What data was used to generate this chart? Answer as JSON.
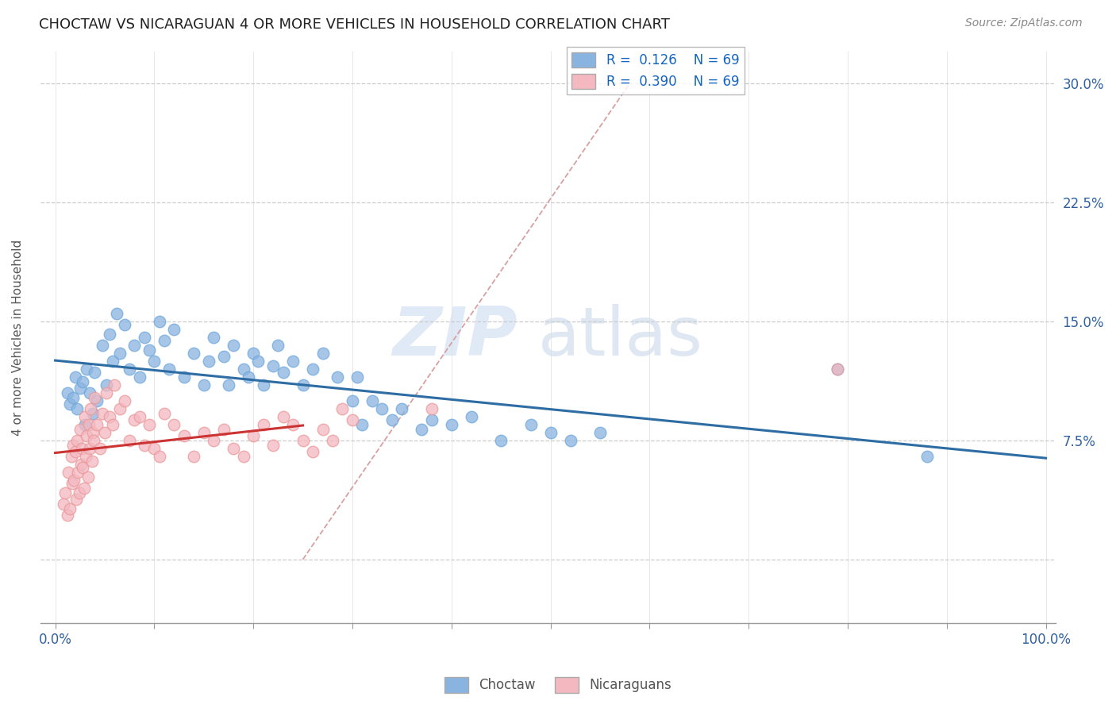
{
  "title": "CHOCTAW VS NICARAGUAN 4 OR MORE VEHICLES IN HOUSEHOLD CORRELATION CHART",
  "source": "Source: ZipAtlas.com",
  "ylabel": "4 or more Vehicles in Household",
  "choctaw_R": "0.126",
  "choctaw_N": "69",
  "nicaraguan_R": "0.390",
  "nicaraguan_N": "69",
  "choctaw_color": "#8ab4e0",
  "choctaw_edge": "#6fa8dc",
  "nicaraguan_color": "#f4b8c1",
  "nicaraguan_edge": "#ea9999",
  "choctaw_line_color": "#2e6da4",
  "nicaraguan_line_color": "#cc3333",
  "diagonal_color": "#d8a0a0",
  "watermark_zip": "ZIP",
  "watermark_atlas": "atlas",
  "choctaw_x": [
    1.2,
    1.5,
    1.8,
    2.0,
    2.2,
    2.5,
    2.8,
    3.0,
    3.2,
    3.5,
    3.8,
    4.0,
    4.2,
    4.8,
    5.2,
    5.5,
    5.8,
    6.2,
    6.5,
    7.0,
    7.5,
    8.0,
    8.5,
    9.0,
    9.5,
    10.0,
    10.5,
    11.0,
    11.5,
    12.0,
    13.0,
    14.0,
    15.0,
    15.5,
    16.0,
    17.0,
    17.5,
    18.0,
    19.0,
    19.5,
    20.0,
    20.5,
    21.0,
    22.0,
    22.5,
    23.0,
    24.0,
    25.0,
    26.0,
    27.0,
    28.5,
    30.0,
    30.5,
    31.0,
    32.0,
    33.0,
    34.0,
    35.0,
    37.0,
    38.0,
    40.0,
    42.0,
    45.0,
    48.0,
    50.0,
    52.0,
    55.0,
    79.0,
    88.0
  ],
  "choctaw_y": [
    10.5,
    9.8,
    10.2,
    11.5,
    9.5,
    10.8,
    11.2,
    8.5,
    12.0,
    10.5,
    9.2,
    11.8,
    10.0,
    13.5,
    11.0,
    14.2,
    12.5,
    15.5,
    13.0,
    14.8,
    12.0,
    13.5,
    11.5,
    14.0,
    13.2,
    12.5,
    15.0,
    13.8,
    12.0,
    14.5,
    11.5,
    13.0,
    11.0,
    12.5,
    14.0,
    12.8,
    11.0,
    13.5,
    12.0,
    11.5,
    13.0,
    12.5,
    11.0,
    12.2,
    13.5,
    11.8,
    12.5,
    11.0,
    12.0,
    13.0,
    11.5,
    10.0,
    11.5,
    8.5,
    10.0,
    9.5,
    8.8,
    9.5,
    8.2,
    8.8,
    8.5,
    9.0,
    7.5,
    8.5,
    8.0,
    7.5,
    8.0,
    12.0,
    6.5
  ],
  "nicaraguan_x": [
    0.8,
    1.0,
    1.2,
    1.3,
    1.5,
    1.6,
    1.7,
    1.8,
    1.9,
    2.0,
    2.1,
    2.2,
    2.3,
    2.4,
    2.5,
    2.6,
    2.7,
    2.8,
    2.9,
    3.0,
    3.1,
    3.2,
    3.3,
    3.4,
    3.5,
    3.6,
    3.7,
    3.8,
    3.9,
    4.0,
    4.2,
    4.5,
    4.8,
    5.0,
    5.2,
    5.5,
    5.8,
    6.0,
    6.5,
    7.0,
    7.5,
    8.0,
    8.5,
    9.0,
    9.5,
    10.0,
    10.5,
    11.0,
    12.0,
    13.0,
    14.0,
    15.0,
    16.0,
    17.0,
    18.0,
    19.0,
    20.0,
    21.0,
    22.0,
    23.0,
    24.0,
    25.0,
    26.0,
    27.0,
    28.0,
    29.0,
    30.0,
    38.0,
    79.0
  ],
  "nicaraguan_y": [
    3.5,
    4.2,
    2.8,
    5.5,
    3.2,
    6.5,
    4.8,
    7.2,
    5.0,
    6.8,
    3.8,
    7.5,
    5.5,
    4.2,
    8.2,
    6.0,
    7.0,
    5.8,
    4.5,
    9.0,
    6.5,
    7.8,
    5.2,
    8.5,
    7.0,
    9.5,
    6.2,
    8.0,
    7.5,
    10.2,
    8.5,
    7.0,
    9.2,
    8.0,
    10.5,
    9.0,
    8.5,
    11.0,
    9.5,
    10.0,
    7.5,
    8.8,
    9.0,
    7.2,
    8.5,
    7.0,
    6.5,
    9.2,
    8.5,
    7.8,
    6.5,
    8.0,
    7.5,
    8.2,
    7.0,
    6.5,
    7.8,
    8.5,
    7.2,
    9.0,
    8.5,
    7.5,
    6.8,
    8.2,
    7.5,
    9.5,
    8.8,
    9.5,
    12.0
  ]
}
